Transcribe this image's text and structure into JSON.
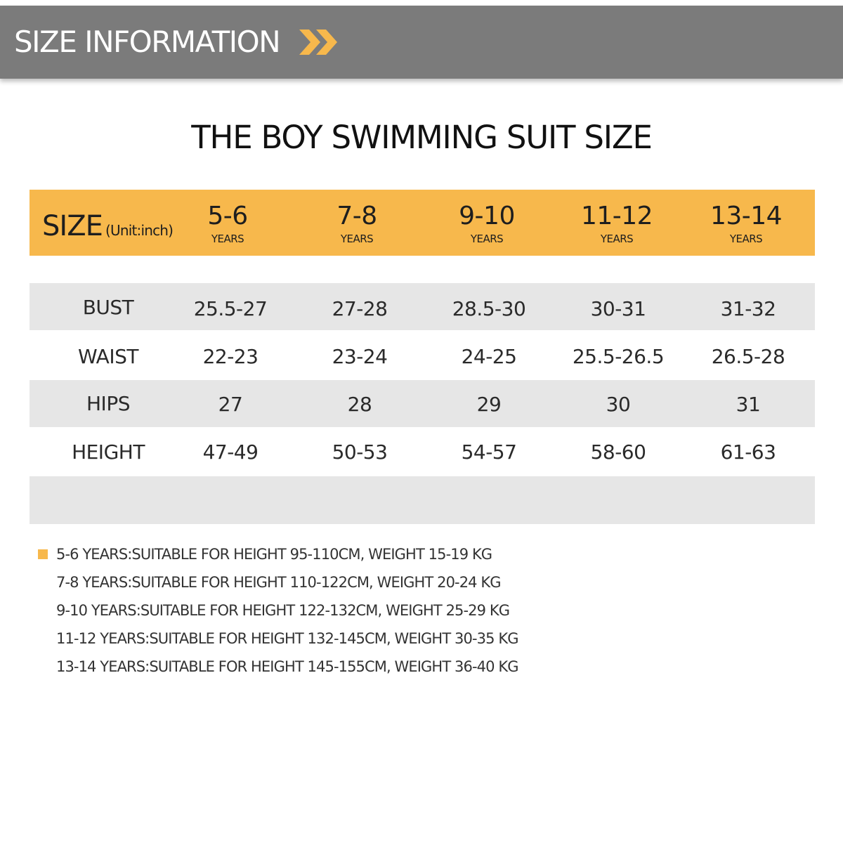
{
  "banner": {
    "title": "SIZE INFORMATION",
    "arrow_icon": "double-chevron-right-icon",
    "background_color": "#7b7b7b",
    "arrow_color": "#f7b84c"
  },
  "title": "THE BOY SWIMMING SUIT SIZE",
  "table": {
    "header_label": "SIZE",
    "header_unit": "(Unit:inch)",
    "header_color": "#f7b84c",
    "columns": [
      {
        "range": "5-6",
        "unit": "YEARS"
      },
      {
        "range": "7-8",
        "unit": "YEARS"
      },
      {
        "range": "9-10",
        "unit": "YEARS"
      },
      {
        "range": "11-12",
        "unit": "YEARS"
      },
      {
        "range": "13-14",
        "unit": "YEARS"
      }
    ],
    "rows": [
      {
        "label": "BUST",
        "values": [
          "25.5-27",
          "27-28",
          "28.5-30",
          "30-31",
          "31-32"
        ]
      },
      {
        "label": "WAIST",
        "values": [
          "22-23",
          "23-24",
          "24-25",
          "25.5-26.5",
          "26.5-28"
        ]
      },
      {
        "label": "HIPS",
        "values": [
          "27",
          "28",
          "29",
          "30",
          "31"
        ]
      },
      {
        "label": "HEIGHT",
        "values": [
          "47-49",
          "50-53",
          "54-57",
          "58-60",
          "61-63"
        ]
      }
    ],
    "stripe_color": "#e6e6e6"
  },
  "notes": [
    "5-6 YEARS:SUITABLE FOR HEIGHT 95-110CM, WEIGHT 15-19 KG",
    "7-8 YEARS:SUITABLE FOR HEIGHT 110-122CM, WEIGHT 20-24 KG",
    "9-10 YEARS:SUITABLE FOR HEIGHT 122-132CM, WEIGHT 25-29 KG",
    "11-12 YEARS:SUITABLE FOR HEIGHT 132-145CM, WEIGHT 30-35 KG",
    "13-14 YEARS:SUITABLE FOR HEIGHT 145-155CM, WEIGHT 36-40 KG"
  ]
}
